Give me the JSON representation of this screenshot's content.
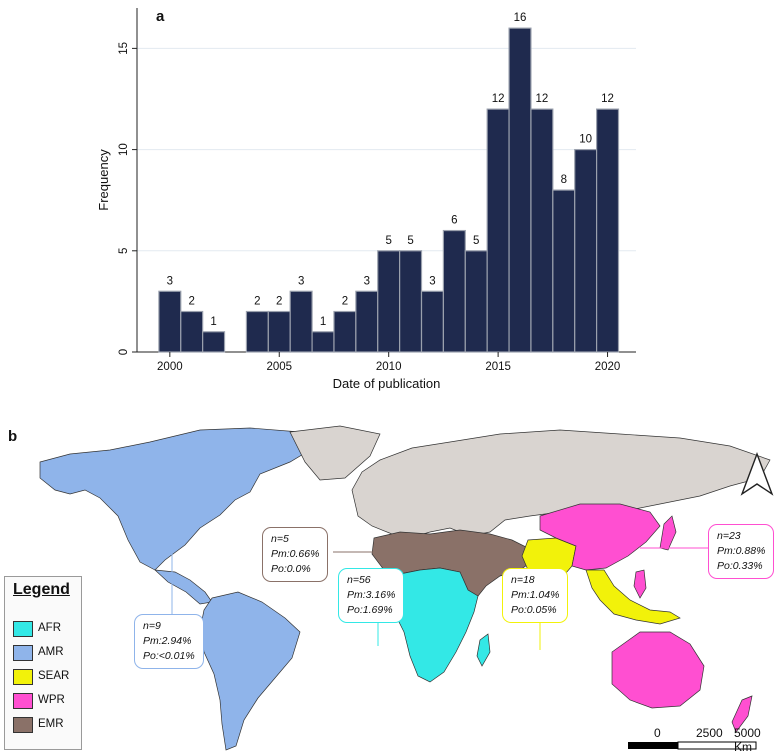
{
  "panel_a_label": "a",
  "panel_b_label": "b",
  "chart_data": {
    "type": "bar",
    "x_bins": [
      2000,
      2001,
      2002,
      2003,
      2004,
      2005,
      2006,
      2007,
      2008,
      2009,
      2010,
      2011,
      2012,
      2013,
      2014,
      2015,
      2016,
      2017,
      2018,
      2019,
      2020
    ],
    "values": [
      3,
      2,
      1,
      0,
      2,
      2,
      3,
      1,
      2,
      3,
      5,
      5,
      3,
      6,
      5,
      12,
      16,
      12,
      8,
      10,
      12
    ],
    "data_labels": [
      "3",
      "2",
      "1",
      "",
      "2",
      "2",
      "3",
      "1",
      "2",
      "3",
      "5",
      "5",
      "3",
      "6",
      "5",
      "12",
      "16",
      "12",
      "8",
      "10",
      "12"
    ],
    "xlabel": "Date of publication",
    "ylabel": "Frequency",
    "x_ticks": [
      "2000",
      "2005",
      "2010",
      "2015",
      "2020"
    ],
    "y_ticks": [
      "0",
      "5",
      "10",
      "15"
    ],
    "ylim": [
      0,
      16
    ],
    "grid": true,
    "bar_color": "#1f2a4e",
    "bar_edge": "#9aa0ad"
  },
  "map": {
    "legend": {
      "title": "Legend",
      "items": [
        {
          "label": "AFR",
          "color": "#33e8e6"
        },
        {
          "label": "AMR",
          "color": "#8fb4ea"
        },
        {
          "label": "SEAR",
          "color": "#f2f20a"
        },
        {
          "label": "WPR",
          "color": "#ff4fd1"
        },
        {
          "label": "EMR",
          "color": "#8a7168"
        }
      ]
    },
    "other_color": "#d9d4d0",
    "callouts": {
      "amr": {
        "n": "n=9",
        "pm": "Pm:2.94%",
        "po": "Po:<0.01%",
        "color": "#8fb4ea"
      },
      "emr": {
        "n": "n=5",
        "pm": "Pm:0.66%",
        "po": "Po:0.0%",
        "color": "#8a7168"
      },
      "afr": {
        "n": "n=56",
        "pm": "Pm:3.16%",
        "po": "Po:1.69%",
        "color": "#33e8e6"
      },
      "sear": {
        "n": "n=18",
        "pm": "Pm:1.04%",
        "po": "Po:0.05%",
        "color": "#f2f20a"
      },
      "wpr": {
        "n": "n=23",
        "pm": "Pm:0.88%",
        "po": "Po:0.33%",
        "color": "#ff4fd1"
      }
    },
    "scale": {
      "zero": "0",
      "mid": "2500",
      "end": "5000 Km"
    }
  }
}
